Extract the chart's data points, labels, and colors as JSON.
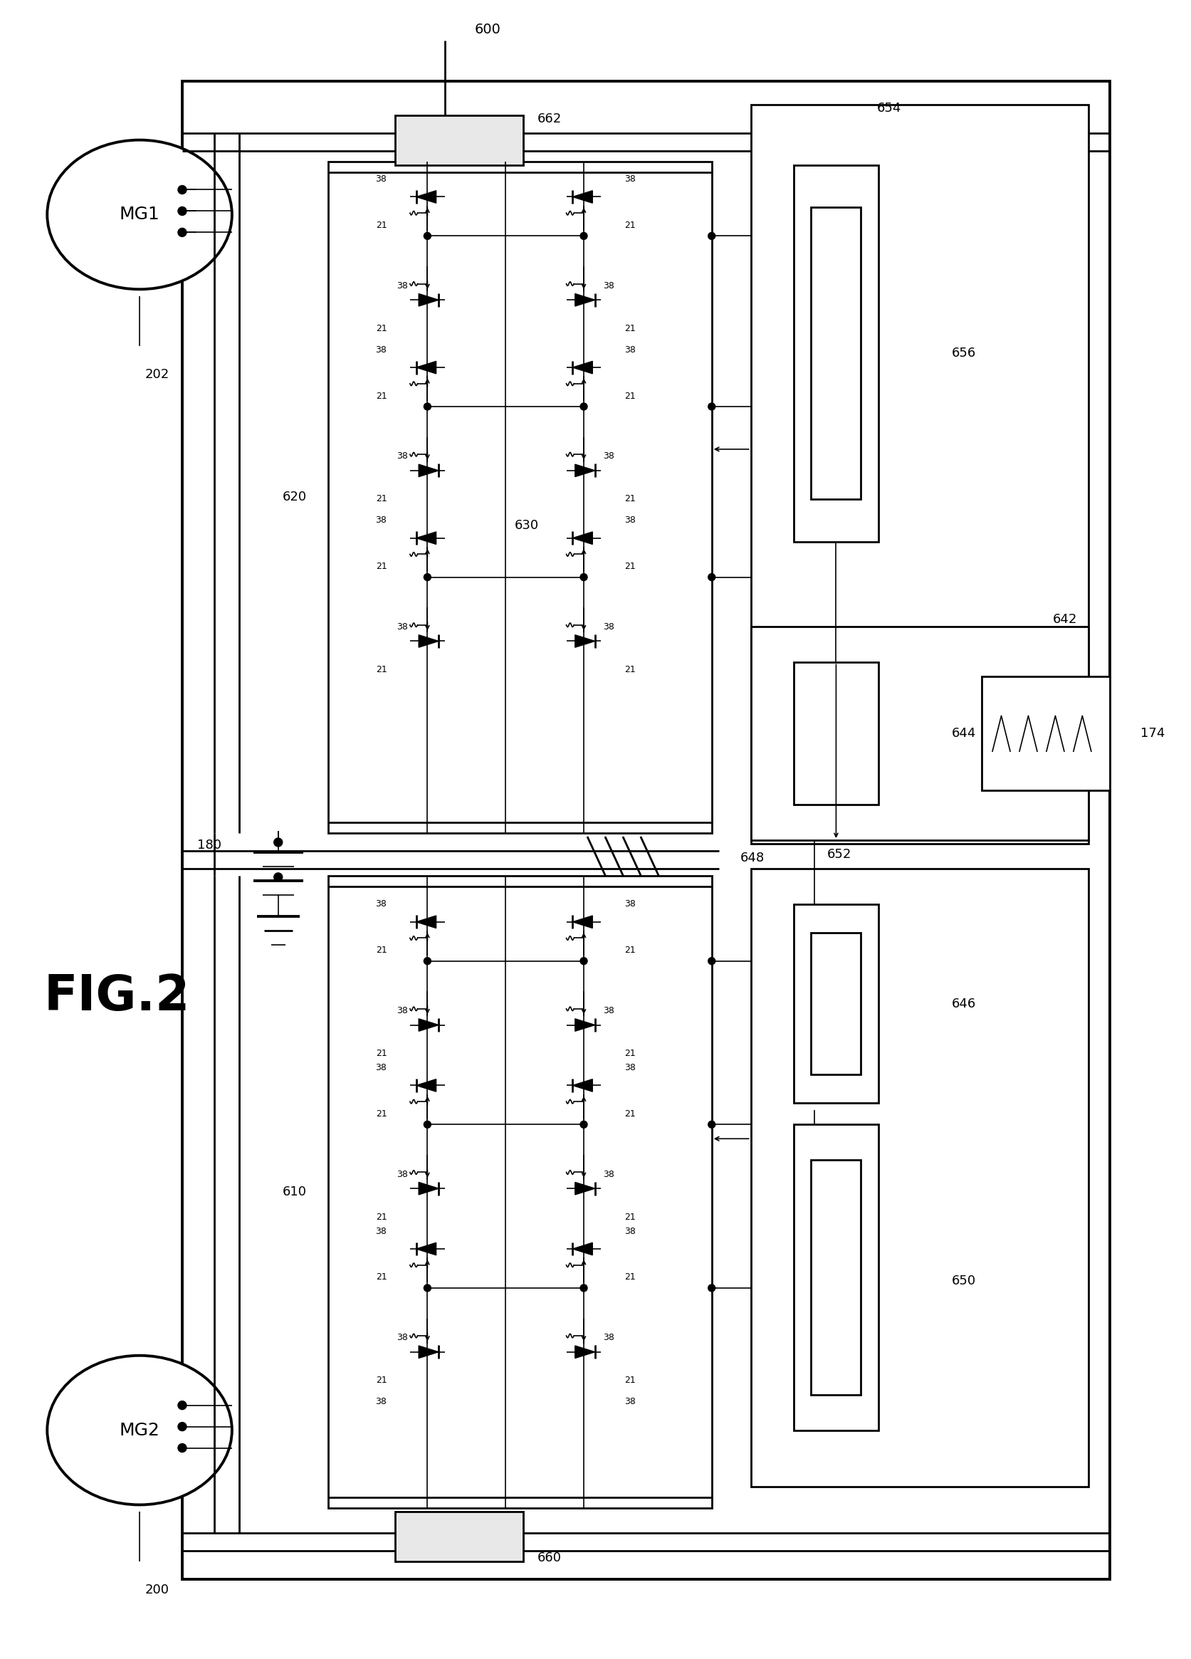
{
  "bg_color": "#ffffff",
  "fig_label": "FIG.2",
  "labels": {
    "mg1": "MG1",
    "mg2": "MG2",
    "n600": "600",
    "n202": "202",
    "n200": "200",
    "n620": "620",
    "n610": "610",
    "n630": "630",
    "n662": "662",
    "n660": "660",
    "n648": "648",
    "n654": "654",
    "n656": "656",
    "n642": "642",
    "n644": "644",
    "n646": "646",
    "n650": "650",
    "n652": "652",
    "n174": "174",
    "n180": "180"
  },
  "lw_thin": 1.2,
  "lw_med": 2.0,
  "lw_thick": 2.8
}
